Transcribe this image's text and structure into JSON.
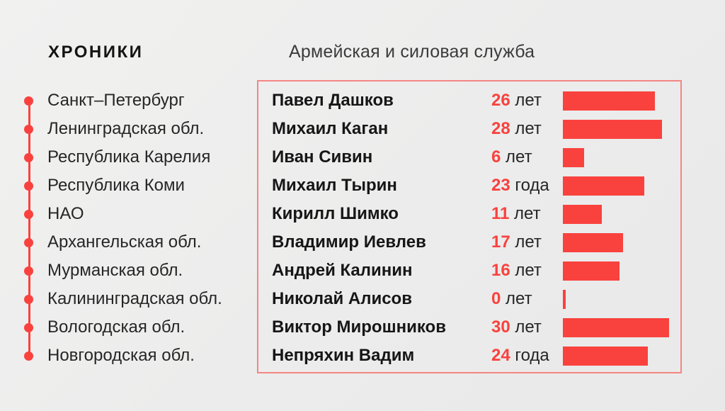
{
  "page": {
    "background": "#ececec",
    "accent": "#f9423e",
    "text_color": "#1b1b1b"
  },
  "header": {
    "logo": "ХРОНИКИ",
    "title": "Армейская и силовая служба"
  },
  "sidebar": {
    "regions": [
      "Санкт–Петербург",
      "Ленинградская обл.",
      "Республика Карелия",
      "Республика Коми",
      "НАО",
      "Архангельская обл.",
      "Мурманская обл.",
      "Калининградская обл.",
      "Вологодская обл.",
      "Новгородская обл."
    ]
  },
  "chart_data": {
    "type": "bar",
    "orientation": "horizontal",
    "title": "Армейская и силовая служба",
    "categories": [
      "Павел Дашков",
      "Михаил Каган",
      "Иван Сивин",
      "Михаил Тырин",
      "Кирилл Шимко",
      "Владимир Иевлев",
      "Андрей Калинин",
      "Николай Алисов",
      "Виктор Мирошников",
      "Непряхин Вадим"
    ],
    "values": [
      26,
      28,
      6,
      23,
      11,
      17,
      16,
      0,
      30,
      24
    ],
    "units": [
      "лет",
      "лет",
      "лет",
      "года",
      "лет",
      "лет",
      "лет",
      "лет",
      "лет",
      "года"
    ],
    "value_labels": [
      "26 лет",
      "28 лет",
      "6 лет",
      "23 года",
      "11 лет",
      "17 лет",
      "16 лет",
      "0 лет",
      "30 лет",
      "24 года"
    ],
    "xlim": [
      0,
      30
    ],
    "grid": false,
    "legend": false,
    "bar_color": "#f9423e",
    "value_color": "#f9423e"
  }
}
